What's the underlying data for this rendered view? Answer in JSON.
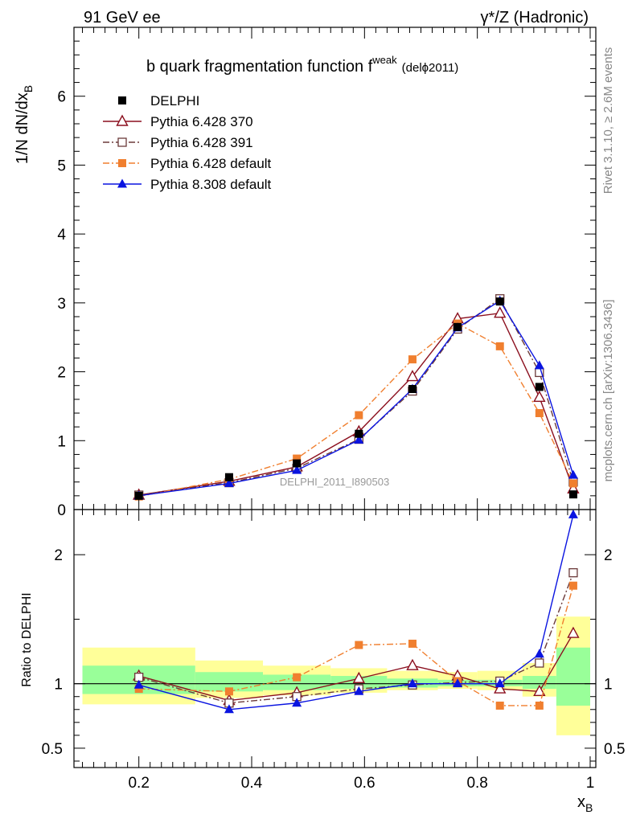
{
  "header": {
    "left": "91 GeV ee",
    "right": "γ*/Z (Hadronic)"
  },
  "side_labels": {
    "rivet": "Rivet 3.1.10, ≥ 2.6M events",
    "mcplots": "mcplots.cern.ch [arXiv:1306.3436]"
  },
  "watermark": "DELPHI_2011_I890503",
  "colors": {
    "delphi": "#000000",
    "p370": "#8b0f1e",
    "p391": "#6b3a3a",
    "p6def": "#f07f2f",
    "p8def": "#0a14e0",
    "band_yellow": "#ffff99",
    "band_green": "#99ff99"
  },
  "chart_data": [
    {
      "type": "line",
      "title": "b quark fragmentation function f",
      "title_sup": "weak",
      "title_suffix": "(delϕ2011)",
      "xlabel": "x",
      "xlabel_sub": "B",
      "ylabel": "1/N dN/dx",
      "ylabel_sub": "B",
      "xlim": [
        0.085,
        1.01
      ],
      "ylim": [
        0,
        7
      ],
      "yticks": [
        0,
        1,
        2,
        3,
        4,
        5,
        6
      ],
      "legend_position": "top-left",
      "x": [
        0.2,
        0.36,
        0.48,
        0.59,
        0.685,
        0.765,
        0.84,
        0.91,
        0.97
      ],
      "series": [
        {
          "name": "DELPHI",
          "key": "delphi",
          "marker": "square-filled",
          "line": "none",
          "values": [
            0.2,
            0.47,
            0.67,
            1.1,
            1.75,
            2.65,
            3.02,
            1.78,
            0.22
          ]
        },
        {
          "name": "Pythia 6.428 370",
          "key": "p370",
          "marker": "triangle-open",
          "line": "solid",
          "values": [
            0.21,
            0.41,
            0.62,
            1.13,
            1.93,
            2.77,
            2.85,
            1.63,
            0.3
          ]
        },
        {
          "name": "Pythia 6.428 391",
          "key": "p391",
          "marker": "square-open",
          "line": "dashdot",
          "values": [
            0.21,
            0.39,
            0.6,
            1.02,
            1.72,
            2.62,
            3.06,
            1.99,
            0.4
          ]
        },
        {
          "name": "Pythia 6.428 default",
          "key": "p6def",
          "marker": "square-filled",
          "line": "dashdot",
          "values": [
            0.19,
            0.44,
            0.74,
            1.37,
            2.18,
            2.7,
            2.37,
            1.4,
            0.38
          ]
        },
        {
          "name": "Pythia 8.308 default",
          "key": "p8def",
          "marker": "triangle-filled",
          "line": "solid",
          "values": [
            0.2,
            0.38,
            0.57,
            1.01,
            1.75,
            2.64,
            3.03,
            2.09,
            0.5
          ]
        }
      ]
    },
    {
      "type": "line",
      "ylabel": "Ratio to DELPHI",
      "xlim": [
        0.085,
        1.01
      ],
      "ylim": [
        0.35,
        2.35
      ],
      "xticks": [
        0.2,
        0.4,
        0.6,
        0.8,
        1
      ],
      "xtick_labels": [
        "0.2",
        "0.4",
        "0.6",
        "0.8",
        "1"
      ],
      "yticks": [
        0.5,
        1,
        2
      ],
      "ytick_labels": [
        "0.5",
        "1",
        "2"
      ],
      "reference_line": 1,
      "x": [
        0.2,
        0.36,
        0.48,
        0.59,
        0.685,
        0.765,
        0.84,
        0.91,
        0.97
      ],
      "bands": [
        {
          "x0": 0.1,
          "x1": 0.3,
          "yellow": [
            0.84,
            1.28
          ],
          "green": [
            0.92,
            1.14
          ]
        },
        {
          "x0": 0.3,
          "x1": 0.42,
          "yellow": [
            0.89,
            1.18
          ],
          "green": [
            0.94,
            1.09
          ]
        },
        {
          "x0": 0.42,
          "x1": 0.54,
          "yellow": [
            0.91,
            1.14
          ],
          "green": [
            0.95,
            1.07
          ]
        },
        {
          "x0": 0.54,
          "x1": 0.64,
          "yellow": [
            0.93,
            1.12
          ],
          "green": [
            0.96,
            1.06
          ]
        },
        {
          "x0": 0.64,
          "x1": 0.73,
          "yellow": [
            0.95,
            1.1
          ],
          "green": [
            0.97,
            1.04
          ]
        },
        {
          "x0": 0.73,
          "x1": 0.8,
          "yellow": [
            0.96,
            1.09
          ],
          "green": [
            0.98,
            1.03
          ]
        },
        {
          "x0": 0.8,
          "x1": 0.88,
          "yellow": [
            0.95,
            1.1
          ],
          "green": [
            0.98,
            1.03
          ]
        },
        {
          "x0": 0.88,
          "x1": 0.94,
          "yellow": [
            0.9,
            1.16
          ],
          "green": [
            0.96,
            1.06
          ]
        },
        {
          "x0": 0.94,
          "x1": 1.0,
          "yellow": [
            0.6,
            1.52
          ],
          "green": [
            0.83,
            1.28
          ]
        }
      ],
      "series": [
        {
          "name": "Pythia 6.428 370",
          "key": "p370",
          "marker": "triangle-open",
          "line": "solid",
          "values": [
            1.06,
            0.87,
            0.93,
            1.04,
            1.14,
            1.06,
            0.96,
            0.94,
            1.39
          ]
        },
        {
          "name": "Pythia 6.428 391",
          "key": "p391",
          "marker": "square-open",
          "line": "dashdot",
          "values": [
            1.05,
            0.85,
            0.9,
            0.96,
            0.99,
            1.01,
            1.02,
            1.16,
            1.86
          ]
        },
        {
          "name": "Pythia 6.428 default",
          "key": "p6def",
          "marker": "square-filled",
          "line": "dashdot",
          "values": [
            0.96,
            0.94,
            1.05,
            1.3,
            1.31,
            1.02,
            0.83,
            0.83,
            1.76
          ]
        },
        {
          "name": "Pythia 8.308 default",
          "key": "p8def",
          "marker": "triangle-filled",
          "line": "solid",
          "values": [
            0.99,
            0.8,
            0.85,
            0.94,
            1.0,
            1.0,
            1.0,
            1.23,
            2.31
          ]
        }
      ]
    }
  ]
}
